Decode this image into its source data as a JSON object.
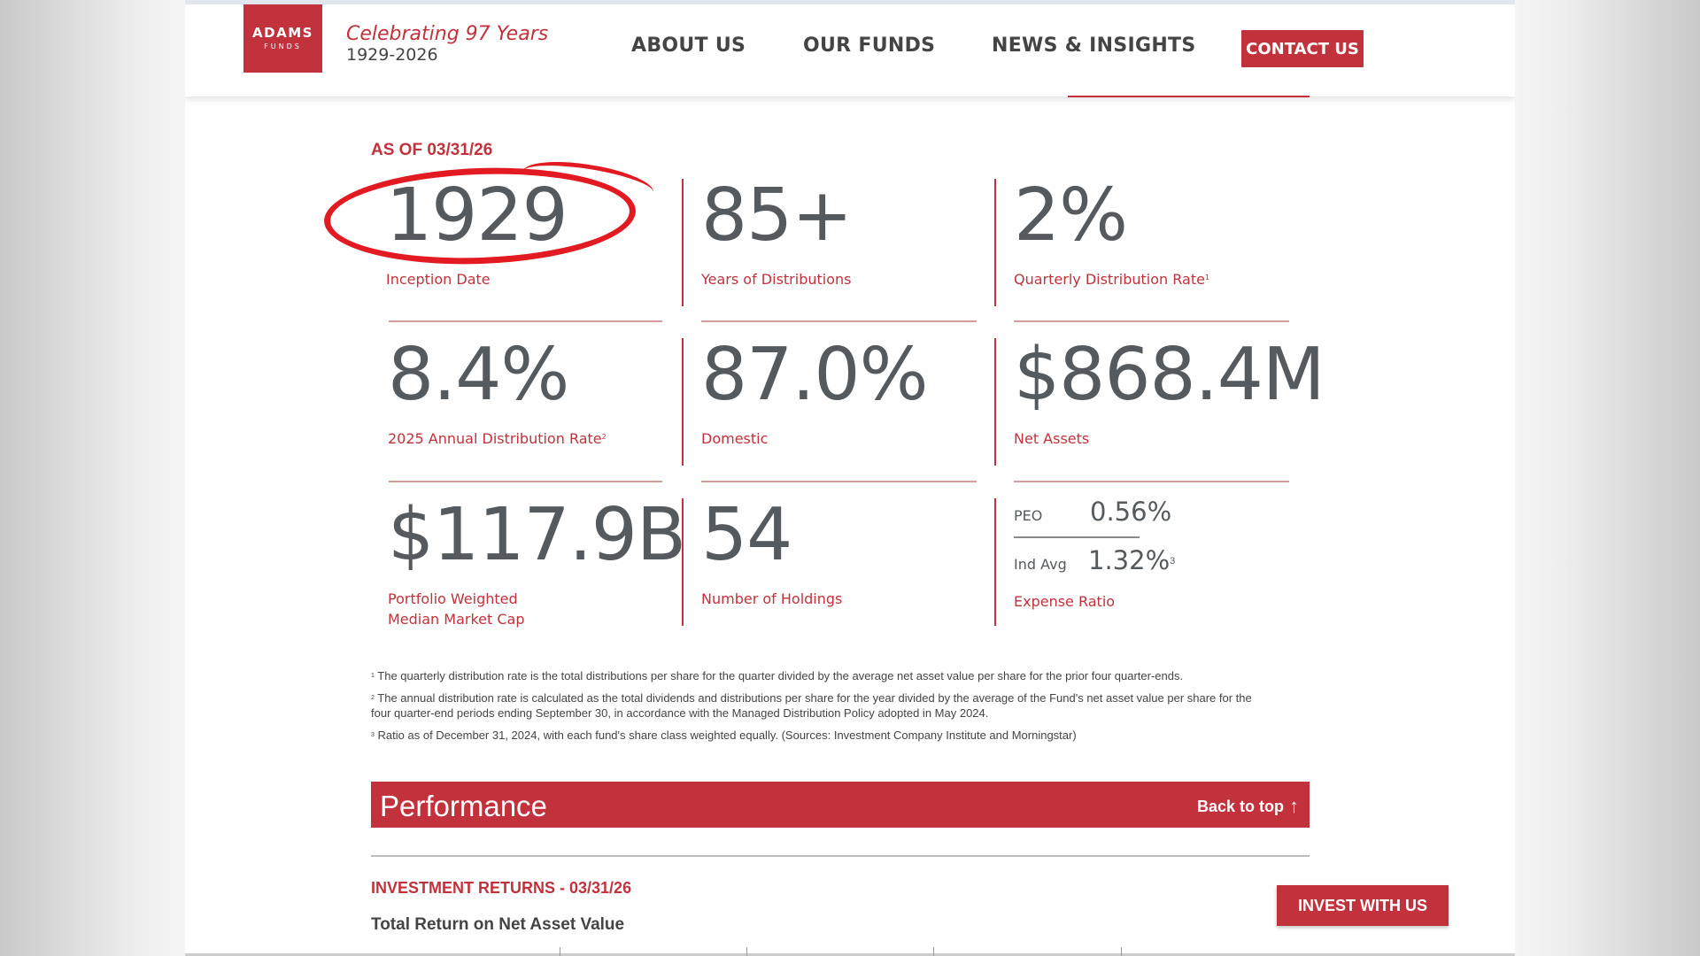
{
  "header": {
    "logo_line1": "ADAMS",
    "logo_line2": "FUNDS",
    "tagline_title": "Celebrating 97 Years",
    "tagline_years": "1929-2026",
    "nav": [
      "ABOUT US",
      "OUR FUNDS",
      "NEWS & INSIGHTS"
    ],
    "contact_label": "CONTACT US"
  },
  "as_of": "AS OF 03/31/26",
  "stats": [
    {
      "value": "1929",
      "label": "Inception Date"
    },
    {
      "value": "85+",
      "label": "Years of Distributions"
    },
    {
      "value": "2%",
      "label": "Quarterly Distribution Rate",
      "note": "1"
    },
    {
      "value": "8.4%",
      "label": "2025 Annual Distribution Rate",
      "note": "2"
    },
    {
      "value": "87.0%",
      "label": "Domestic"
    },
    {
      "value": "$868.4M",
      "label": "Net Assets"
    },
    {
      "value": "$117.9B",
      "label_line1": "Portfolio Weighted",
      "label_line2": "Median Market Cap"
    },
    {
      "value": "54",
      "label": "Number of Holdings"
    }
  ],
  "expense": {
    "peo_label": "PEO",
    "peo_value": "0.56%",
    "ind_label": "Ind Avg",
    "ind_value": "1.32%",
    "ind_note": "3",
    "label": "Expense Ratio"
  },
  "footnotes": [
    {
      "num": "1",
      "text": "The quarterly distribution rate is the total distributions per share for the quarter divided by the average net asset value per share for the prior four quarter-ends."
    },
    {
      "num": "2",
      "text": "The annual distribution rate is calculated as the total dividends and distributions per share for the year divided by the average of the Fund's net asset value per share for the four quarter-end periods ending September 30, in accordance with the Managed Distribution Policy adopted in May 2024."
    },
    {
      "num": "3",
      "text": "Ratio as of December 31, 2024, with each fund's share class weighted equally. (Sources: Investment Company Institute and Morningstar)"
    }
  ],
  "performance": {
    "title": "Performance",
    "back_to_top": "Back to top",
    "investment_returns": "INVESTMENT RETURNS - 03/31/26",
    "total_return": "Total Return on Net Asset Value",
    "invest_label": "INVEST WITH US"
  },
  "colors": {
    "brand_red": "#c2323c",
    "annotation_red": "#e21b22",
    "text_gray": "#555a5e"
  },
  "icons": [
    "arrow-up-icon"
  ]
}
